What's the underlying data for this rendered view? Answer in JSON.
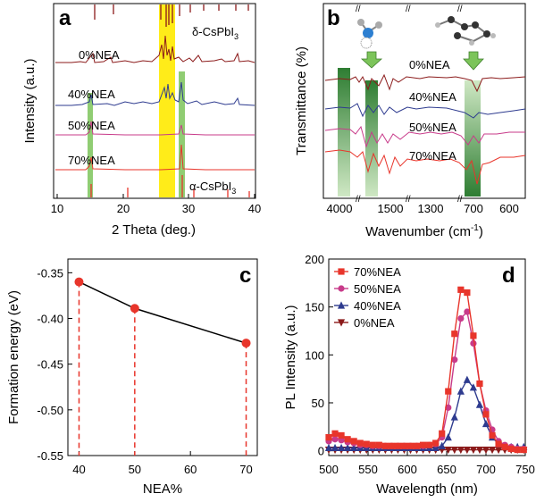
{
  "panels": {
    "a": {
      "letter": "a",
      "xlabel": "2 Theta (deg.)",
      "ylabel": "Intensity (a.u.)",
      "xticks": [
        "10",
        "20",
        "30",
        "40"
      ],
      "traces": [
        "0%NEA",
        "40%NEA",
        "50%NEA",
        "70%NEA"
      ],
      "phase_top": "δ-CsPbI",
      "phase_bottom": "α-CsPbI",
      "phase_sub": "3"
    },
    "b": {
      "letter": "b",
      "xlabel": "Wavenumber (cm",
      "xlabel_sup": "-1",
      "xlabel_end": ")",
      "ylabel": "Transmittance (%)",
      "xticks": [
        "4000",
        "1500",
        "1300",
        "700",
        "600"
      ],
      "traces": [
        "0%NEA",
        "40%NEA",
        "50%NEA",
        "70%NEA"
      ]
    },
    "c": {
      "letter": "c"
    },
    "d": {
      "letter": "d"
    }
  },
  "chart_data": [
    {
      "type": "line",
      "panel": "c",
      "title": "",
      "xlabel": "NEA%",
      "ylabel": "Formation energy (eV)",
      "x": [
        40,
        50,
        70
      ],
      "values": [
        -0.36,
        -0.389,
        -0.427
      ],
      "xlim": [
        38,
        72
      ],
      "ylim": [
        -0.55,
        -0.335
      ],
      "xticks": [
        "40",
        "50",
        "60",
        "70"
      ],
      "yticks": [
        "-0.35",
        "-0.40",
        "-0.45",
        "-0.50",
        "-0.55"
      ],
      "color": "#e8352b"
    },
    {
      "type": "line",
      "panel": "d",
      "title": "",
      "xlabel": "Wavelength (nm)",
      "ylabel": "PL Intensity (a.u.)",
      "xlim": [
        500,
        750
      ],
      "ylim": [
        -5,
        200
      ],
      "xticks": [
        "500",
        "550",
        "600",
        "650",
        "700",
        "750"
      ],
      "yticks": [
        "0",
        "50",
        "100",
        "150",
        "200"
      ],
      "legend_position": "top-left",
      "x": [
        500,
        508,
        516,
        524,
        532,
        540,
        548,
        556,
        564,
        572,
        580,
        588,
        596,
        604,
        612,
        620,
        628,
        636,
        644,
        652,
        660,
        668,
        676,
        684,
        692,
        700,
        708,
        716,
        724,
        732,
        740,
        748
      ],
      "series": [
        {
          "name": "70%NEA",
          "color": "#e8352b",
          "marker": "square",
          "values": [
            14,
            18,
            16,
            12,
            10,
            8,
            7,
            6,
            6,
            5,
            5,
            5,
            5,
            5,
            5,
            6,
            6,
            8,
            18,
            62,
            122,
            168,
            165,
            120,
            70,
            38,
            16,
            7,
            4,
            2,
            1,
            1
          ]
        },
        {
          "name": "50%NEA",
          "color": "#c83b8a",
          "marker": "circle",
          "values": [
            10,
            12,
            11,
            9,
            8,
            6,
            6,
            5,
            5,
            5,
            5,
            5,
            5,
            5,
            5,
            5,
            6,
            7,
            14,
            45,
            95,
            138,
            145,
            112,
            70,
            42,
            22,
            10,
            6,
            4,
            2,
            2
          ]
        },
        {
          "name": "40%NEA",
          "color": "#2e3b8f",
          "marker": "triangle-up",
          "values": [
            3,
            3,
            3,
            3,
            3,
            3,
            3,
            3,
            3,
            3,
            3,
            3,
            3,
            3,
            3,
            3,
            3,
            3,
            5,
            14,
            35,
            62,
            74,
            66,
            48,
            28,
            14,
            7,
            5,
            4,
            4,
            4
          ]
        },
        {
          "name": "0%NEA",
          "color": "#8b1a1a",
          "marker": "triangle-down",
          "values": [
            1,
            1,
            1,
            1,
            1,
            1,
            1,
            1,
            1,
            1,
            1,
            1,
            1,
            1,
            1,
            1,
            1,
            1,
            1,
            1,
            1,
            1,
            1,
            1,
            1,
            1,
            1,
            1,
            1,
            1,
            1,
            1
          ]
        }
      ]
    }
  ]
}
